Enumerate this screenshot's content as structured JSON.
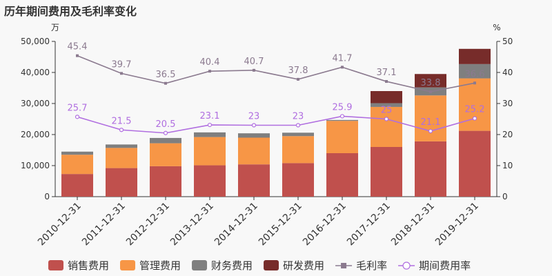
{
  "chart_data": {
    "type": "bar",
    "title": "历年期间费用及毛利率变化",
    "left_unit": "万",
    "right_unit": "%",
    "categories": [
      "2010-12-31",
      "2011-12-31",
      "2012-12-31",
      "2013-12-31",
      "2014-12-31",
      "2015-12-31",
      "2016-12-31",
      "2017-12-31",
      "2018-12-31",
      "2019-12-31"
    ],
    "ylim_left": [
      0,
      50000
    ],
    "yticks_left": [
      "0",
      "10,000",
      "20,000",
      "30,000",
      "40,000",
      "50,000"
    ],
    "ylim_right": [
      0,
      50
    ],
    "yticks_right": [
      "0",
      "10",
      "20",
      "30",
      "40",
      "50"
    ],
    "bar_series": [
      {
        "name": "销售费用",
        "color": "#c0504d",
        "values": [
          7300,
          9200,
          9800,
          10100,
          10400,
          10800,
          14000,
          16000,
          17800,
          21200
        ]
      },
      {
        "name": "管理费用",
        "color": "#f79646",
        "values": [
          6200,
          6500,
          7400,
          9100,
          8600,
          8700,
          10400,
          12900,
          14800,
          16900
        ]
      },
      {
        "name": "财务费用",
        "color": "#7f7f7f",
        "values": [
          1000,
          1100,
          1700,
          1500,
          1400,
          1100,
          300,
          1200,
          2600,
          4600
        ]
      },
      {
        "name": "研发费用",
        "color": "#772c2a",
        "values": [
          0,
          0,
          0,
          0,
          0,
          0,
          0,
          3900,
          4300,
          4900
        ]
      }
    ],
    "line_series": [
      {
        "name": "毛利率",
        "color": "#8b7a8f",
        "marker": "square",
        "values": [
          45.4,
          39.7,
          36.5,
          40.4,
          40.7,
          37.8,
          41.7,
          37.1,
          33.8,
          36.6
        ],
        "labels": [
          "45.4",
          "39.7",
          "36.5",
          "40.4",
          "40.7",
          "37.8",
          "41.7",
          "37.1",
          "33.8",
          "36.6"
        ]
      },
      {
        "name": "期间费用率",
        "color": "#b06ee0",
        "marker": "circle",
        "values": [
          25.7,
          21.5,
          20.5,
          23.1,
          23.0,
          23.0,
          25.9,
          25.0,
          21.1,
          25.2
        ],
        "labels": [
          "25.7",
          "21.5",
          "20.5",
          "23.1",
          "23",
          "23",
          "25.9",
          "25",
          "21.1",
          "25.2"
        ]
      }
    ],
    "legend": "bottom"
  }
}
